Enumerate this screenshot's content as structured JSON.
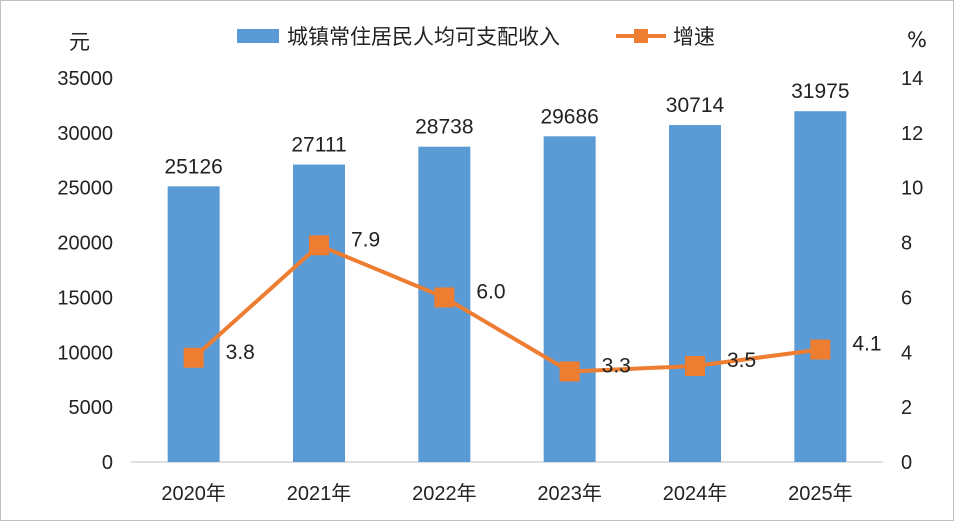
{
  "chart_data": {
    "type": "bar",
    "categories": [
      "2020年",
      "2021年",
      "2022年",
      "2023年",
      "2024年",
      "2025年"
    ],
    "series": [
      {
        "name": "城镇常住居民人均可支配收入",
        "type": "bar",
        "axis": "left",
        "values": [
          25126,
          27111,
          28738,
          29686,
          30714,
          31975
        ],
        "color": "#5b9bd5"
      },
      {
        "name": "增速",
        "type": "line",
        "axis": "right",
        "values": [
          3.8,
          7.9,
          6.0,
          3.3,
          3.5,
          4.1
        ],
        "color": "#ed7d31"
      }
    ],
    "left_axis": {
      "unit": "元",
      "ylim": [
        0,
        35000
      ],
      "ticks": [
        "0",
        "5000",
        "10000",
        "15000",
        "20000",
        "25000",
        "30000",
        "35000"
      ]
    },
    "right_axis": {
      "unit": "%",
      "ylim": [
        0,
        14
      ],
      "ticks": [
        "0",
        "2",
        "4",
        "6",
        "8",
        "10",
        "12",
        "14"
      ]
    },
    "bar_labels": [
      "25126",
      "27111",
      "28738",
      "29686",
      "30714",
      "31975"
    ],
    "line_labels": [
      "3.8",
      "7.9",
      "6.0",
      "3.3",
      "3.5",
      "4.1"
    ],
    "legend_position": "top",
    "grid": false
  }
}
